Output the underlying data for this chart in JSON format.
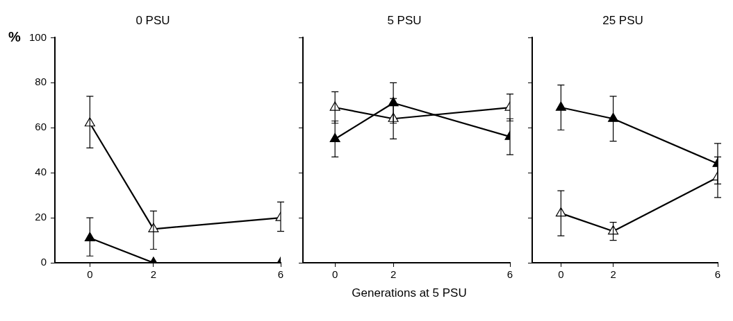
{
  "chart_data": [
    {
      "type": "line",
      "title": "0 PSU",
      "ylabel": "%",
      "x": [
        0,
        2,
        6
      ],
      "xlim": [
        -1.1,
        6
      ],
      "xticks": [
        0,
        2,
        6
      ],
      "ylim": [
        0,
        100
      ],
      "yticks": [
        0,
        20,
        40,
        60,
        80,
        100
      ],
      "grid": false,
      "legend": false,
      "marker": "triangle",
      "line_style": "solid",
      "series": [
        {
          "color": "#ffffff",
          "values": [
            62,
            15,
            20
          ],
          "errors": [
            [
              51,
              74
            ],
            [
              6,
              23
            ],
            [
              14,
              27
            ]
          ]
        },
        {
          "color": "#000000",
          "values": [
            11,
            0,
            0
          ],
          "errors": [
            [
              3,
              20
            ],
            null,
            null
          ]
        }
      ]
    },
    {
      "type": "line",
      "title": "5 PSU",
      "xlabel": "Generations at 5 PSU",
      "x": [
        0,
        2,
        6
      ],
      "xlim": [
        -1.1,
        6
      ],
      "xticks": [
        0,
        2,
        6
      ],
      "ylim": [
        0,
        100
      ],
      "yticks": [
        0,
        20,
        40,
        60,
        80,
        100
      ],
      "tick_labels": "x",
      "grid": false,
      "legend": false,
      "marker": "triangle",
      "line_style": "solid",
      "series": [
        {
          "color": "#ffffff",
          "values": [
            69,
            64,
            69
          ],
          "errors": [
            7,
            9,
            6
          ]
        },
        {
          "color": "#000000",
          "values": [
            55,
            71,
            56
          ],
          "errors": [
            8,
            9,
            8
          ]
        }
      ]
    },
    {
      "type": "line",
      "title": "25 PSU",
      "x": [
        0,
        2,
        6
      ],
      "xlim": [
        -1.1,
        6
      ],
      "xticks": [
        0,
        2,
        6
      ],
      "ylim": [
        0,
        100
      ],
      "yticks": [
        0,
        20,
        40,
        60,
        80,
        100
      ],
      "tick_labels": "x",
      "grid": false,
      "legend": false,
      "marker": "triangle",
      "line_style": "solid",
      "series": [
        {
          "color": "#ffffff",
          "values": [
            22,
            14,
            38
          ],
          "errors": [
            10,
            4,
            9
          ]
        },
        {
          "color": "#000000",
          "values": [
            69,
            64,
            44
          ],
          "errors": [
            10,
            10,
            9
          ]
        }
      ]
    }
  ]
}
